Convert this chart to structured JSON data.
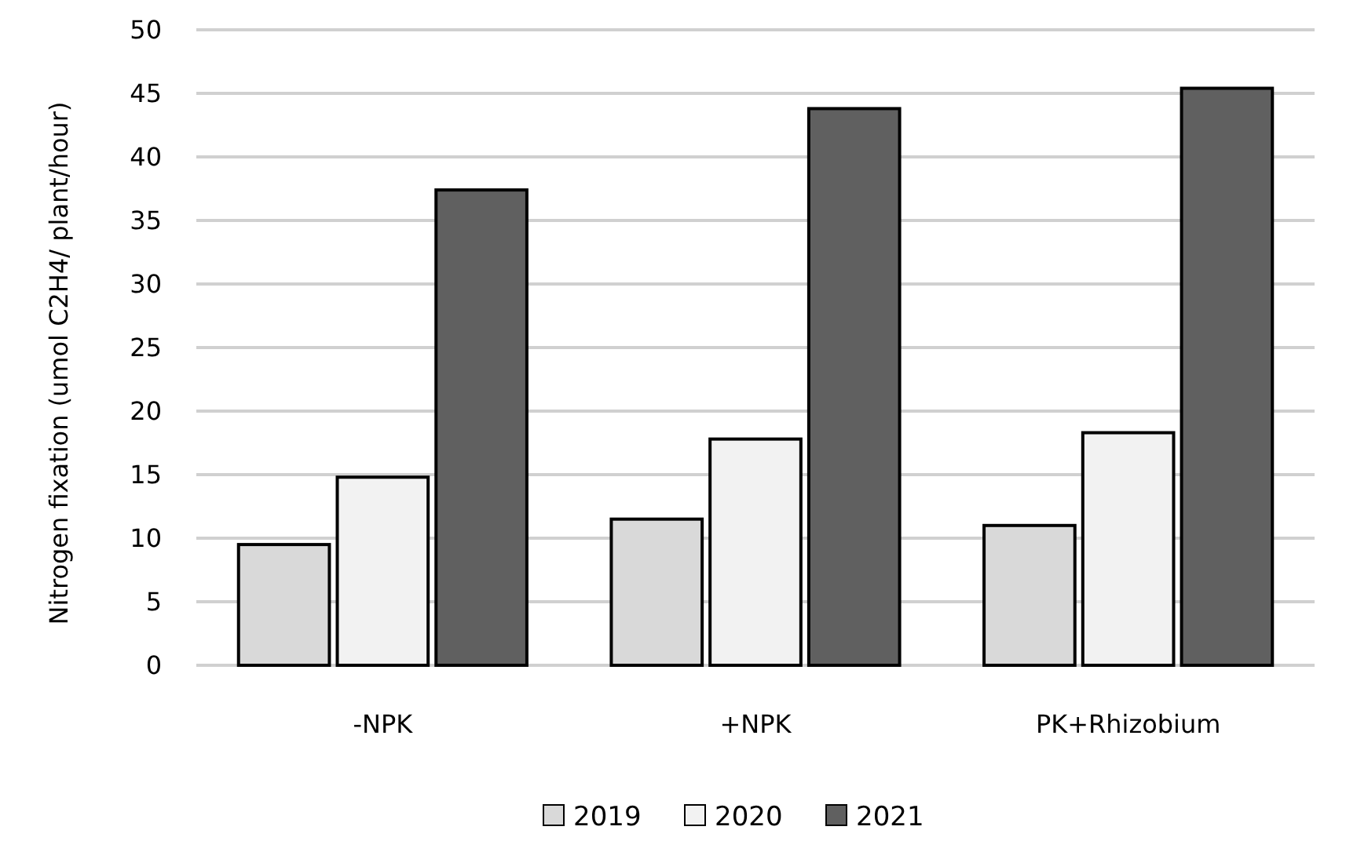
{
  "chart_data": {
    "type": "bar",
    "ylabel": "Nitrogen fixation (umol C2H4/ plant/hour)",
    "categories": [
      "-NPK",
      "+NPK",
      "PK+Rhizobium"
    ],
    "series": [
      {
        "name": "2019",
        "color": "#d9d9d9",
        "values": [
          9.5,
          11.5,
          11.0
        ]
      },
      {
        "name": "2020",
        "color": "#f2f2f2",
        "values": [
          14.8,
          17.8,
          18.3
        ]
      },
      {
        "name": "2021",
        "color": "#606060",
        "values": [
          37.4,
          43.8,
          45.4
        ]
      }
    ],
    "ylim": [
      0,
      50
    ],
    "yticks": [
      0,
      5,
      10,
      15,
      20,
      25,
      30,
      35,
      40,
      45,
      50
    ],
    "grid": "y",
    "legend": "bottom"
  }
}
